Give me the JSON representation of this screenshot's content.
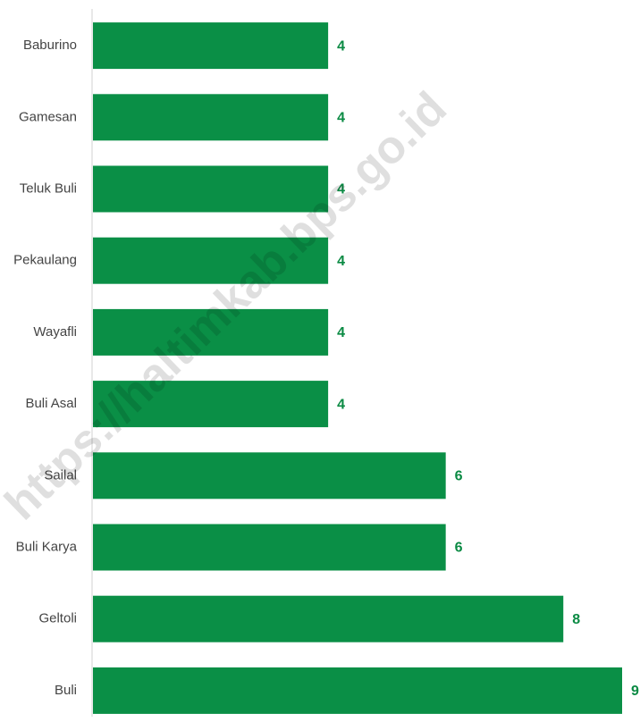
{
  "chart_data": {
    "type": "bar",
    "orientation": "horizontal",
    "categories": [
      "Baburino",
      "Gamesan",
      "Teluk Buli",
      "Pekaulang",
      "Wayafli",
      "Buli Asal",
      "Sailal",
      "Buli Karya",
      "Geltoli",
      "Buli"
    ],
    "values": [
      4,
      4,
      4,
      4,
      4,
      4,
      6,
      6,
      8,
      9
    ],
    "color": "#0a8f46",
    "label_color": "#0a8a43",
    "xlim": [
      0,
      9
    ],
    "watermark": "https://haltimkab.bps.go.id"
  }
}
